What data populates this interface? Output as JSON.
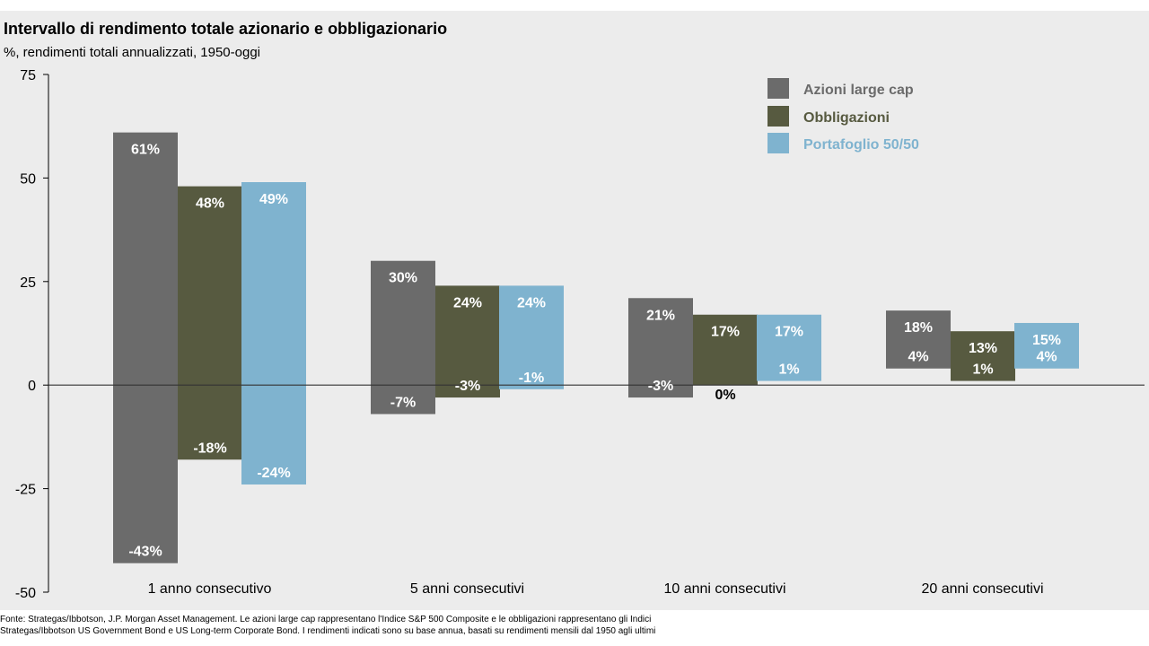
{
  "chart_data": {
    "type": "bar",
    "title": "Intervallo di rendimento totale azionario e obbligazionario",
    "subtitle": "%, rendimenti totali annualizzati, 1950-oggi",
    "categories": [
      "1 anno consecutivo",
      "5 anni consecutivi",
      "10 anni consecutivi",
      "20 anni consecutivi"
    ],
    "series": [
      {
        "name": "Azioni large cap",
        "color": "#6b6b6b",
        "high": [
          61,
          30,
          21,
          18
        ],
        "low": [
          -43,
          -7,
          -3,
          4
        ],
        "high_labels": [
          "61%",
          "30%",
          "21%",
          "18%"
        ],
        "low_labels": [
          "-43%",
          "-7%",
          "-3%",
          "4%"
        ]
      },
      {
        "name": "Obbligazioni",
        "color": "#575a40",
        "high": [
          48,
          24,
          17,
          13
        ],
        "low": [
          -18,
          -3,
          0,
          1
        ],
        "high_labels": [
          "48%",
          "24%",
          "17%",
          "13%"
        ],
        "low_labels": [
          "-18%",
          "-3%",
          "0%",
          "1%"
        ]
      },
      {
        "name": "Portafoglio 50/50",
        "color": "#7fb3cf",
        "high": [
          49,
          24,
          17,
          15
        ],
        "low": [
          -24,
          -1,
          1,
          4
        ],
        "high_labels": [
          "49%",
          "24%",
          "17%",
          "15%"
        ],
        "low_labels": [
          "-24%",
          "-1%",
          "1%",
          "4%"
        ]
      }
    ],
    "yticks": [
      75,
      50,
      25,
      0,
      -25,
      -50
    ],
    "ylim": [
      -50,
      75
    ],
    "grid": false,
    "legend_position": "top-right"
  },
  "footnote": {
    "line1": "Fonte: Strategas/Ibbotson, J.P. Morgan Asset Management. Le azioni large cap rappresentano l'Indice S&P 500 Composite e le obbligazioni rappresentano gli Indici",
    "line2": "Strategas/Ibbotson US Government Bond e US Long-term Corporate Bond. I rendimenti indicati sono su base annua, basati su rendimenti mensili dal 1950 agli ultimi"
  }
}
